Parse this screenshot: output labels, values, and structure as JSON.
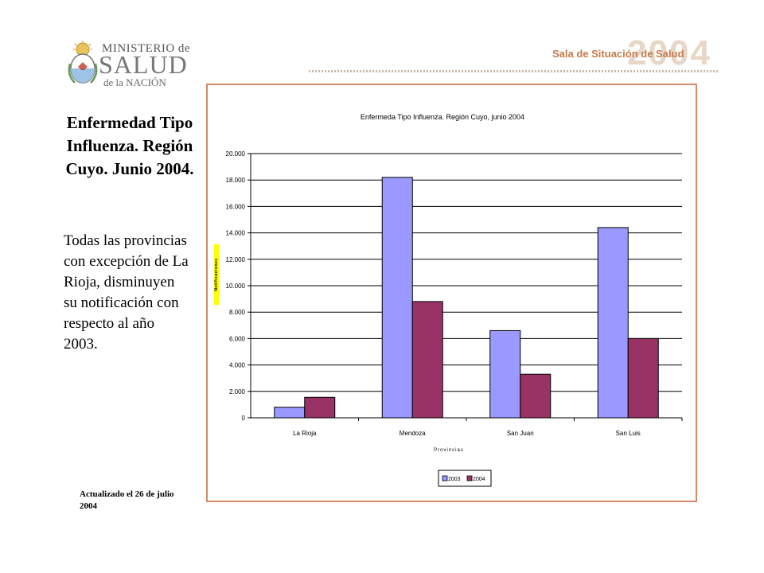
{
  "logo": {
    "line1": "MINISTERIO de",
    "line2": "SALUD",
    "line3": "de la NACIÓN"
  },
  "header": {
    "program": "Sala de Situación de Salud",
    "year": "2004"
  },
  "sidebar": {
    "title": "Enfermedad Tipo Influenza. Región Cuyo. Junio 2004.",
    "body": "Todas las provincias con excepción de La Rioja, disminuyen su notificación con respecto al año 2003.",
    "footer": "Actualizado el 26 de julio 2004"
  },
  "colors": {
    "series_2003": "#9999ff",
    "series_2004": "#993366",
    "frame_border": "#d58a68"
  },
  "chart_data": {
    "type": "bar",
    "title": "Enfermeda Tipo Influenza. Región Cuyo, junio 2004",
    "xlabel": "Provincias",
    "ylabel": "Notificaciones",
    "categories": [
      "La Rioja",
      "Mendoza",
      "San Juan",
      "San Luis"
    ],
    "series": [
      {
        "name": "2003",
        "values": [
          800,
          18200,
          6600,
          14400
        ]
      },
      {
        "name": "2004",
        "values": [
          1550,
          8800,
          3300,
          6000
        ]
      }
    ],
    "ylim": [
      0,
      20000
    ],
    "yticks": [
      "0",
      "2.000",
      "4.000",
      "6.000",
      "8.000",
      "10.000",
      "12.000",
      "14.000",
      "16.000",
      "18.000",
      "20.000"
    ],
    "grid": true,
    "legend": "bottom"
  }
}
